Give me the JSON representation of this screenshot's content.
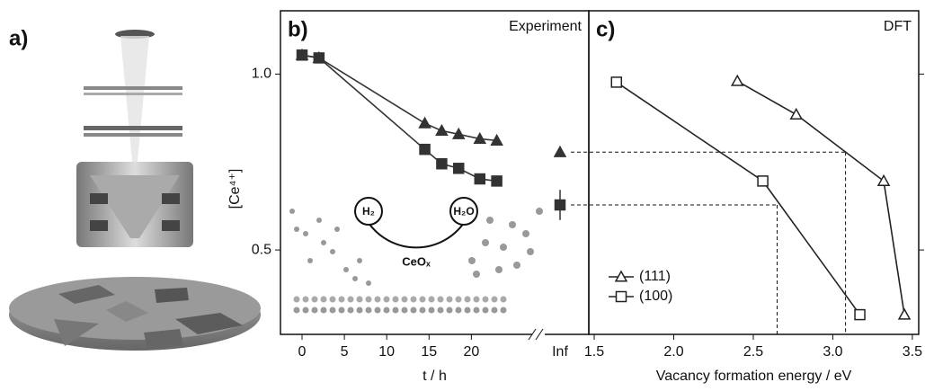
{
  "panel_a": {
    "label": "a)"
  },
  "chart_data": [
    {
      "type": "line",
      "panel_label": "b)",
      "title": "Experiment",
      "ylabel": "[Ce⁴⁺]",
      "xlabel": "t / h",
      "xlim": [
        -2.55,
        27.5
      ],
      "xticks": [
        0,
        5,
        10,
        15,
        20
      ],
      "ylim": [
        0.26,
        1.18
      ],
      "yticks": [
        0.5,
        {
          "value": 1,
          "label": "1.0"
        }
      ],
      "inf_label": "Inf",
      "series": [
        {
          "marker": "triangle",
          "color": "#333333",
          "x": [
            0,
            2,
            14.5,
            16.5,
            18.5,
            21,
            23
          ],
          "values": [
            1.054,
            1.046,
            0.86,
            0.839,
            0.829,
            0.816,
            0.811
          ],
          "inf_value": 0.778
        },
        {
          "marker": "square",
          "color": "#333333",
          "x": [
            0,
            2,
            14.5,
            16.5,
            18.5,
            21,
            23
          ],
          "values": [
            1.054,
            1.046,
            0.786,
            0.745,
            0.732,
            0.702,
            0.696
          ],
          "inf_value": 0.628,
          "inf_error": 0.043
        }
      ],
      "inset": {
        "labels": [
          "H₂",
          "H₂O",
          "CeOₓ"
        ]
      }
    },
    {
      "type": "line",
      "panel_label": "c)",
      "title": "DFT",
      "xlabel": "Vacancy formation energy / eV",
      "xlim": [
        1.466,
        3.54
      ],
      "xticks": [
        1.5,
        {
          "value": 2,
          "label": "2.0"
        },
        2.5,
        {
          "value": 3,
          "label": "3.0"
        },
        3.5
      ],
      "ylim": [
        0.26,
        1.18
      ],
      "yticks": [
        0.5,
        1
      ],
      "legend": "lower left",
      "series": [
        {
          "name": "(111)",
          "marker": "triangle",
          "color": "#222222",
          "x": [
            2.4,
            2.77,
            3.32,
            3.45
          ],
          "values": [
            0.98,
            0.885,
            0.696,
            0.316
          ]
        },
        {
          "name": "(100)",
          "marker": "square",
          "color": "#222222",
          "x": [
            1.64,
            2.56,
            3.17
          ],
          "values": [
            0.977,
            0.696,
            0.316
          ]
        }
      ],
      "reference_lines": [
        {
          "x": 3.08,
          "y": 0.778
        },
        {
          "x": 2.65,
          "y": 0.628
        }
      ]
    }
  ]
}
